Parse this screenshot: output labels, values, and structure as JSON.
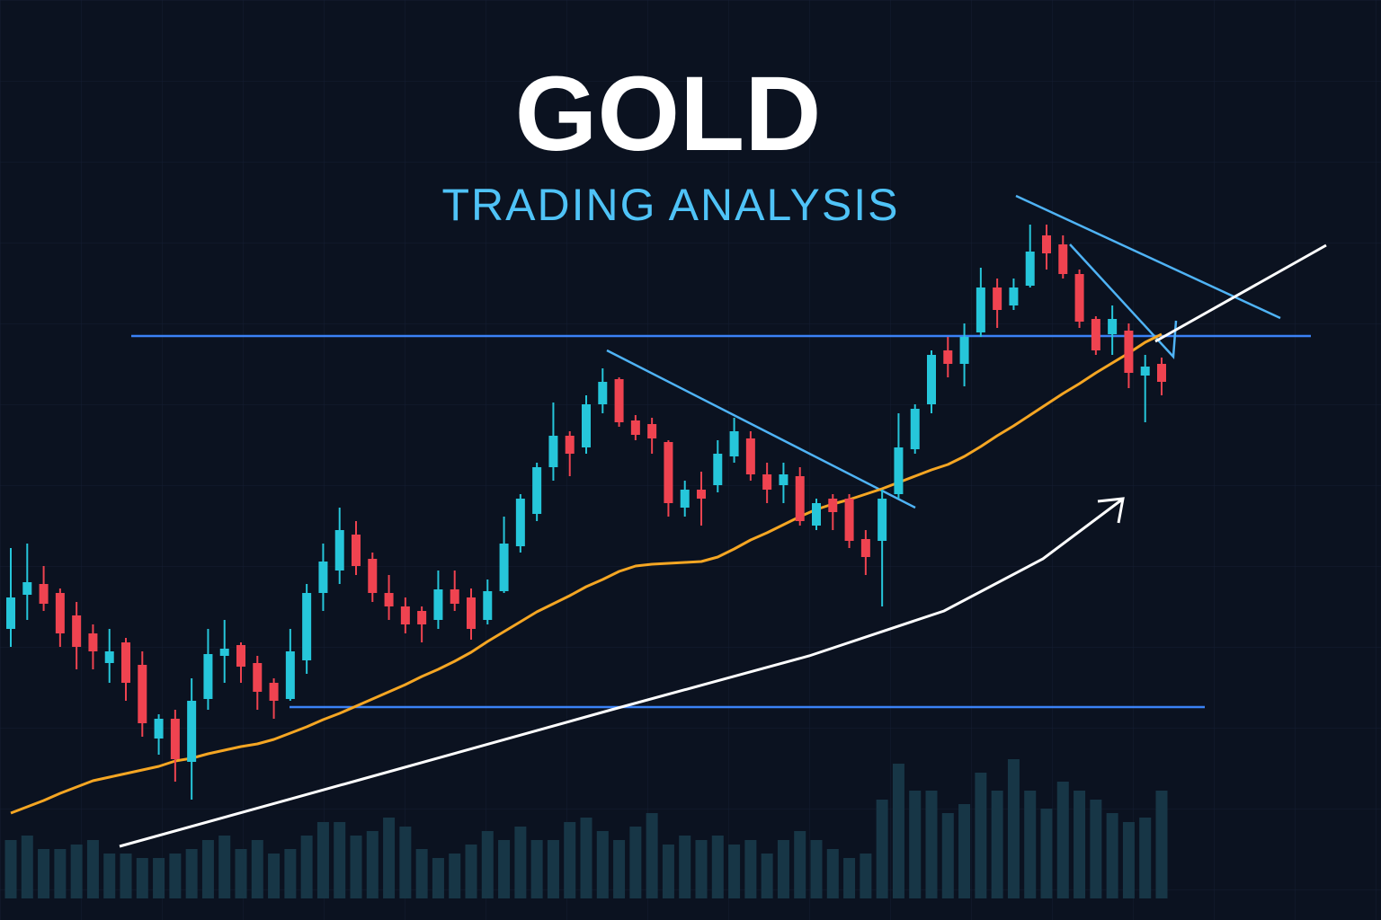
{
  "chart_data": {
    "type": "candlestick",
    "title": "GOLD",
    "subtitle": "TRADING ANALYSIS",
    "open": [
      30,
      33.8,
      35,
      34,
      31.5,
      29.5,
      26.2,
      28.5,
      26,
      17.8,
      20,
      15.2,
      22.2,
      27,
      28.2,
      26.2,
      24,
      22.2,
      26.5,
      34,
      36.5,
      40.5,
      37.8,
      34,
      32.5,
      32,
      31,
      34.4,
      33.5,
      31,
      34.2,
      39.2,
      42.8,
      48,
      51.5,
      50.2,
      55,
      57.8,
      53.2,
      52.8,
      50.8,
      43.5,
      45.5,
      46,
      49.2,
      51.2,
      47.2,
      46,
      47,
      41.5,
      44.5,
      44.5,
      40,
      39.8,
      45,
      50,
      55,
      61,
      59.5,
      63,
      68,
      66,
      68.2,
      73.8,
      72.8,
      69.5,
      64.5,
      62.8,
      63.2,
      58.2,
      59.5
    ],
    "high": [
      39,
      39.5,
      37,
      34.5,
      33,
      30.5,
      30,
      29,
      27.5,
      20.5,
      21,
      24.5,
      30,
      31,
      28.5,
      27,
      24.5,
      30,
      35,
      39.5,
      43.5,
      42,
      38.5,
      36,
      33.5,
      32.5,
      36.5,
      36.5,
      34.5,
      35.5,
      42.5,
      45,
      48.5,
      55.2,
      52,
      56,
      59,
      58,
      53.8,
      53.5,
      51,
      46.5,
      47.5,
      51,
      53.5,
      52,
      48.5,
      48.5,
      48,
      44.5,
      45,
      45,
      41,
      45.5,
      54,
      55,
      61,
      62.5,
      64,
      70.2,
      69,
      69,
      75,
      75,
      73.8,
      70,
      64.8,
      66,
      64,
      60.5,
      60.2
    ],
    "low": [
      28,
      31,
      32,
      28,
      25.5,
      25.5,
      24,
      22,
      18,
      16,
      13,
      11,
      21,
      24,
      24,
      21,
      20,
      22,
      25,
      32,
      35,
      36,
      33,
      31,
      29.5,
      28.5,
      30,
      32,
      28.8,
      30.5,
      34,
      38.5,
      42,
      46.5,
      47,
      49.5,
      54,
      52.5,
      51,
      49.5,
      42.5,
      42.5,
      41.5,
      45.2,
      48.5,
      46.5,
      44,
      44,
      41.5,
      41,
      41,
      39,
      36,
      32.5,
      44.5,
      49.5,
      54,
      58,
      57,
      62.5,
      63.5,
      65.5,
      68,
      70,
      69,
      63.5,
      60.5,
      60.5,
      56.8,
      53,
      56
    ],
    "close": [
      33.5,
      35.2,
      32.8,
      29.5,
      28,
      27.5,
      27.5,
      24,
      19.5,
      20,
      15.5,
      22,
      27.2,
      27.8,
      25.8,
      23,
      22,
      27.5,
      34,
      37.5,
      41,
      37,
      34,
      32.5,
      30.5,
      30.5,
      34.4,
      32.8,
      30,
      34.2,
      39.5,
      44.5,
      48,
      51.5,
      49.5,
      55,
      57.5,
      53,
      51.6,
      51.2,
      44,
      45.5,
      44.5,
      49.5,
      52,
      47.2,
      45.5,
      47.2,
      42,
      44,
      43,
      39.8,
      38,
      44.5,
      50.2,
      54.5,
      60.5,
      59.5,
      62.5,
      68,
      65.5,
      68,
      72,
      71.8,
      69.5,
      64.2,
      61,
      64.5,
      58.5,
      59.2,
      57.5
    ],
    "up_color": "#26c6da",
    "down_color": "#ef4350",
    "moving_average": {
      "color": "#f5a623",
      "values": [
        9.5,
        10.2,
        10.9,
        11.7,
        12.4,
        13.1,
        13.5,
        13.9,
        14.3,
        14.7,
        15.3,
        15.6,
        16.1,
        16.5,
        16.9,
        17.2,
        17.7,
        18.4,
        19.1,
        19.9,
        20.6,
        21.4,
        22.2,
        23,
        23.8,
        24.7,
        25.5,
        26.4,
        27.4,
        28.6,
        29.7,
        30.8,
        31.9,
        32.8,
        33.7,
        34.7,
        35.5,
        36.4,
        37,
        37.2,
        37.3,
        37.4,
        37.5,
        38,
        38.9,
        39.9,
        40.7,
        41.6,
        42.5,
        43.3,
        43.9,
        44.4,
        45,
        45.6,
        46.3,
        47,
        47.7,
        48.3,
        49.2,
        50.3,
        51.5,
        52.6,
        53.8,
        55,
        56.2,
        57.3,
        58.5,
        59.6,
        60.7,
        61.9,
        62.8
      ]
    },
    "volume": {
      "color": "#173646",
      "values": [
        6.5,
        7,
        5.5,
        5.5,
        6,
        6.5,
        5,
        5,
        4.5,
        4.5,
        5,
        5.5,
        6.5,
        7,
        5.5,
        6.5,
        5,
        5.5,
        7,
        8.5,
        8.5,
        7,
        7.5,
        9,
        8,
        5.5,
        4.5,
        5,
        6,
        7.5,
        6.5,
        8,
        6.5,
        6.5,
        8.5,
        9,
        7.5,
        6.5,
        8,
        9.5,
        6,
        7,
        6.5,
        7,
        6,
        6.5,
        5,
        6.5,
        7.5,
        6.5,
        5.5,
        4.5,
        5,
        11,
        15,
        12,
        12,
        9.5,
        10.5,
        14,
        12,
        15.5,
        12,
        10,
        13,
        12,
        11,
        9.5,
        8.5,
        9,
        12
      ]
    },
    "ylim": [
      0,
      100
    ],
    "volume_lim": [
      0,
      20
    ]
  }
}
